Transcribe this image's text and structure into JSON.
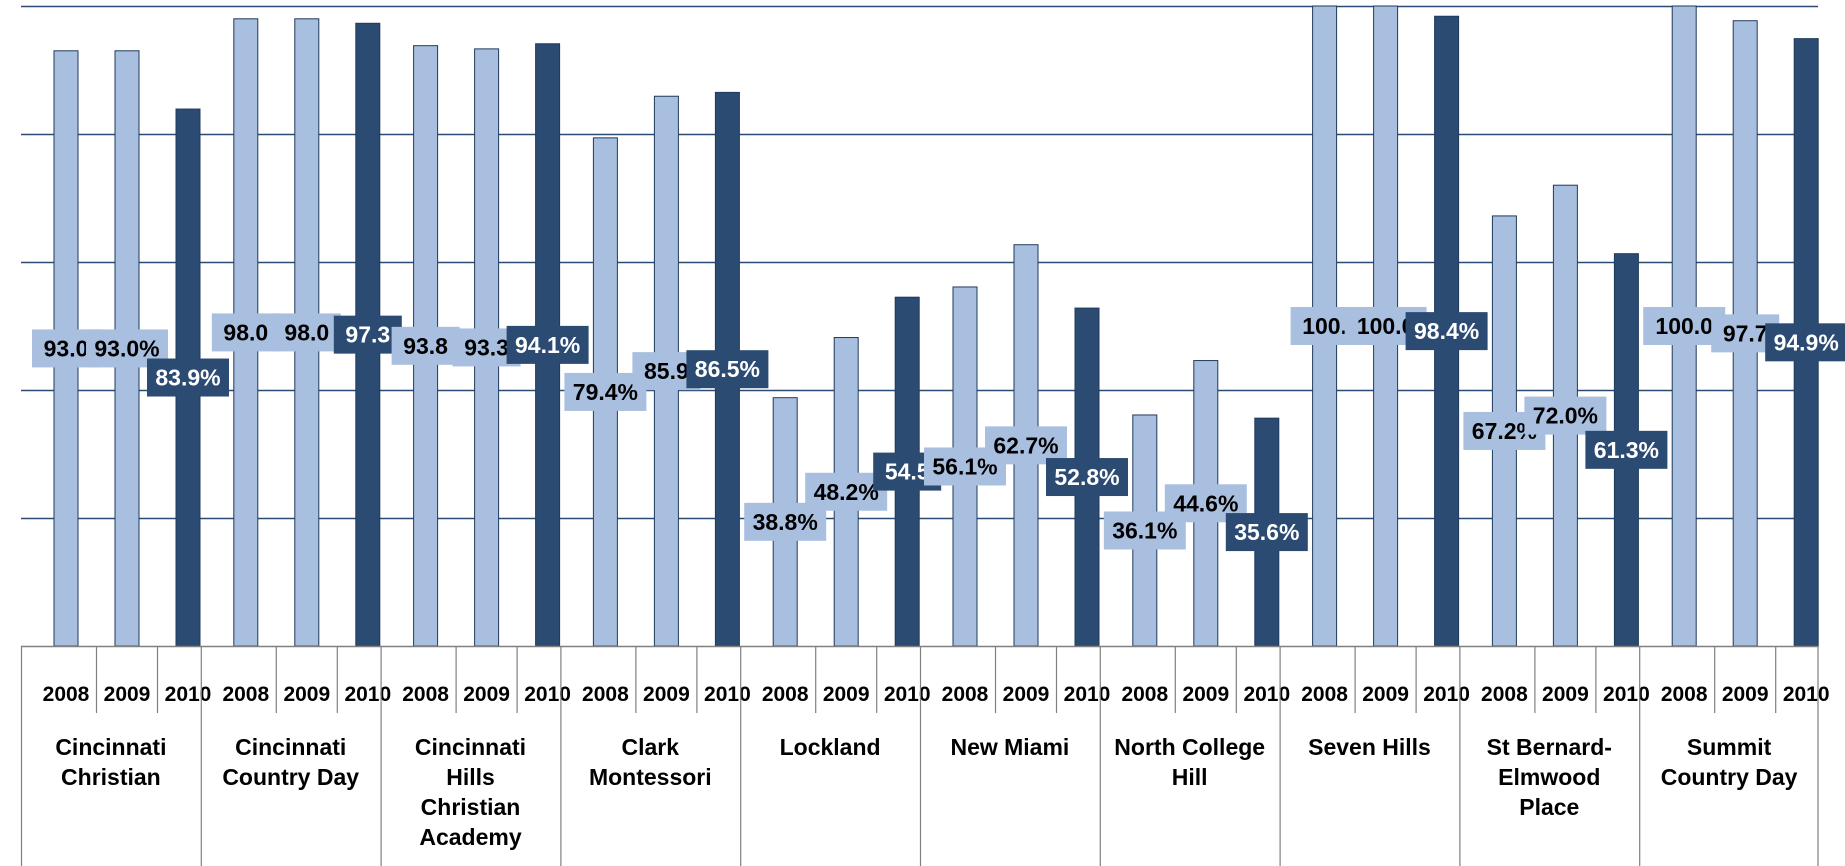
{
  "colors": {
    "light_bar": "#A9BFE0",
    "dark_bar": "#2C4B73",
    "bar_outline": "#1F3A5C",
    "gridline": "#2C4B73",
    "axis": "#808080"
  },
  "chart_data": {
    "type": "bar",
    "title": "",
    "xlabel": "",
    "ylabel": "",
    "ylim": [
      0,
      100
    ],
    "grid": true,
    "legend": "none",
    "groups": [
      {
        "name_lines": [
          "Cincinnati",
          "Christian"
        ],
        "years": [
          "2008",
          "2009",
          "2010"
        ],
        "values": [
          93.0,
          93.0,
          83.9
        ],
        "labels": [
          "93.0",
          "93.0%",
          "83.9%"
        ]
      },
      {
        "name_lines": [
          "Cincinnati",
          "Country Day"
        ],
        "years": [
          "2008",
          "2009",
          "2010"
        ],
        "values": [
          98.0,
          98.0,
          97.3
        ],
        "labels": [
          "98.0",
          "98.0",
          "97.3"
        ]
      },
      {
        "name_lines": [
          "Cincinnati",
          "Hills",
          "Christian",
          "Academy"
        ],
        "years": [
          "2008",
          "2009",
          "2010"
        ],
        "values": [
          93.8,
          93.3,
          94.1
        ],
        "labels": [
          "93.8",
          "93.3",
          "94.1%"
        ]
      },
      {
        "name_lines": [
          "Clark",
          "Montessori"
        ],
        "years": [
          "2008",
          "2009",
          "2010"
        ],
        "values": [
          79.4,
          85.9,
          86.5
        ],
        "labels": [
          "79.4%",
          "85.9",
          "86.5%"
        ]
      },
      {
        "name_lines": [
          "Lockland"
        ],
        "years": [
          "2008",
          "2009",
          "2010"
        ],
        "values": [
          38.8,
          48.2,
          54.5
        ],
        "labels": [
          "38.8%",
          "48.2%",
          "54.5"
        ]
      },
      {
        "name_lines": [
          "New Miami"
        ],
        "years": [
          "2008",
          "2009",
          "2010"
        ],
        "values": [
          56.1,
          62.7,
          52.8
        ],
        "labels": [
          "56.1%",
          "62.7%",
          "52.8%"
        ]
      },
      {
        "name_lines": [
          "North College",
          "Hill"
        ],
        "years": [
          "2008",
          "2009",
          "2010"
        ],
        "values": [
          36.1,
          44.6,
          35.6
        ],
        "labels": [
          "36.1%",
          "44.6%",
          "35.6%"
        ]
      },
      {
        "name_lines": [
          "Seven Hills"
        ],
        "years": [
          "2008",
          "2009",
          "2010"
        ],
        "values": [
          100.0,
          100.0,
          98.4
        ],
        "labels": [
          "100.",
          "100.0",
          "98.4%"
        ]
      },
      {
        "name_lines": [
          "St Bernard-",
          "Elmwood",
          "Place"
        ],
        "years": [
          "2008",
          "2009",
          "2010"
        ],
        "values": [
          67.2,
          72.0,
          61.3
        ],
        "labels": [
          "67.2%",
          "72.0%",
          "61.3%"
        ]
      },
      {
        "name_lines": [
          "Summit",
          "Country Day"
        ],
        "years": [
          "2008",
          "2009",
          "2010"
        ],
        "values": [
          100.0,
          97.7,
          94.9
        ],
        "labels": [
          "100.0",
          "97.7",
          "94.9%"
        ]
      }
    ]
  }
}
